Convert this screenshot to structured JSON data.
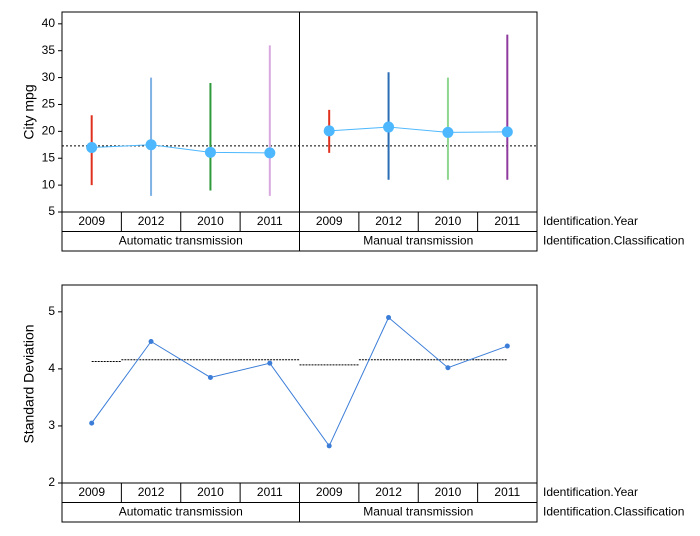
{
  "chart_data": [
    {
      "type": "range",
      "y_label": "City mpg",
      "groups": [
        {
          "name": "Automatic transmission",
          "categories": [
            "2009",
            "2012",
            "2010",
            "2011"
          ]
        },
        {
          "name": "Manual transmission",
          "categories": [
            "2009",
            "2012",
            "2010",
            "2011"
          ]
        }
      ],
      "row_labels": [
        "Identification.Year",
        "Identification.Classification"
      ],
      "low": [
        10,
        8,
        9,
        8,
        16,
        11,
        11,
        11
      ],
      "high": [
        23,
        30,
        29,
        36,
        24,
        31,
        30,
        38
      ],
      "values": [
        17,
        17.5,
        16.1,
        16,
        20.1,
        20.8,
        19.8,
        19.9
      ],
      "colors": [
        "#e0301e",
        "#7fb2e5",
        "#2e9a3b",
        "#d9a8e0",
        "#e0301e",
        "#2a6db5",
        "#8fd68f",
        "#8e3a9e"
      ],
      "point_color": "#4db8ff",
      "reference": 17.3,
      "ylim": [
        5,
        42.2
      ],
      "yticks": [
        5,
        10,
        15,
        20,
        25,
        30,
        35,
        40
      ]
    },
    {
      "type": "line",
      "y_label": "Standard Deviation",
      "groups": [
        {
          "name": "Automatic transmission",
          "categories": [
            "2009",
            "2012",
            "2010",
            "2011"
          ]
        },
        {
          "name": "Manual transmission",
          "categories": [
            "2009",
            "2012",
            "2010",
            "2011"
          ]
        }
      ],
      "row_labels": [
        "Identification.Year",
        "Identification.Classification"
      ],
      "values": [
        3.05,
        4.48,
        3.85,
        4.1,
        2.65,
        4.9,
        4.02,
        4.4
      ],
      "limits": [
        4.13,
        4.16,
        4.16,
        4.16,
        4.07,
        4.16,
        4.16,
        4.16
      ],
      "color": "#3b7dd8",
      "ylim": [
        2,
        5.47
      ],
      "yticks": [
        2,
        3,
        4,
        5
      ]
    }
  ]
}
